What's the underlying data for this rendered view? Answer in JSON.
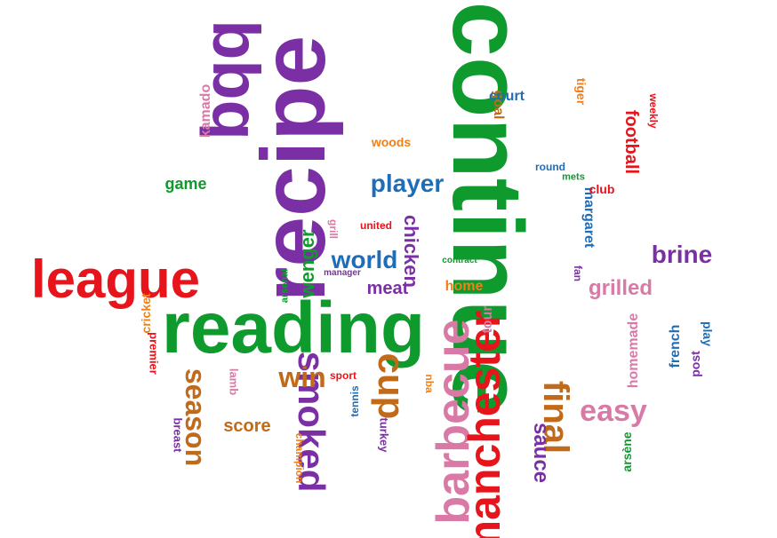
{
  "palette": {
    "purple": "#7b2fa5",
    "green": "#0e9a2c",
    "red": "#e8141b",
    "blue": "#1f6db8",
    "pink": "#d97aa6",
    "orange": "#f07f1a",
    "brown": "#c06a1a"
  },
  "words": [
    {
      "text": "continue",
      "color": "green",
      "orientation": "vertical-cw"
    },
    {
      "text": "recipe",
      "color": "purple",
      "orientation": "vertical-ccw"
    },
    {
      "text": "reading",
      "color": "green",
      "orientation": "horizontal"
    },
    {
      "text": "bbq",
      "color": "purple",
      "orientation": "vertical-cw"
    },
    {
      "text": "league",
      "color": "red",
      "orientation": "horizontal"
    },
    {
      "text": "barbecue",
      "color": "pink",
      "orientation": "vertical-ccw"
    },
    {
      "text": "manchester",
      "color": "red",
      "orientation": "vertical-ccw"
    },
    {
      "text": "smoked",
      "color": "purple",
      "orientation": "vertical-cw"
    },
    {
      "text": "cup",
      "color": "brown",
      "orientation": "vertical-cw"
    },
    {
      "text": "final",
      "color": "brown",
      "orientation": "vertical-cw"
    },
    {
      "text": "easy",
      "color": "pink",
      "orientation": "horizontal"
    },
    {
      "text": "season",
      "color": "brown",
      "orientation": "vertical-cw"
    },
    {
      "text": "win",
      "color": "brown",
      "orientation": "horizontal"
    },
    {
      "text": "world",
      "color": "blue",
      "orientation": "horizontal"
    },
    {
      "text": "player",
      "color": "blue",
      "orientation": "horizontal"
    },
    {
      "text": "brine",
      "color": "purple",
      "orientation": "horizontal"
    },
    {
      "text": "grilled",
      "color": "pink",
      "orientation": "horizontal"
    },
    {
      "text": "sauce",
      "color": "purple",
      "orientation": "vertical-cw"
    },
    {
      "text": "chicken",
      "color": "purple",
      "orientation": "vertical-cw"
    },
    {
      "text": "wenger",
      "color": "green",
      "orientation": "vertical-ccw"
    },
    {
      "text": "meat",
      "color": "purple",
      "orientation": "horizontal"
    },
    {
      "text": "football",
      "color": "red",
      "orientation": "vertical-cw"
    },
    {
      "text": "score",
      "color": "brown",
      "orientation": "horizontal"
    },
    {
      "text": "game",
      "color": "green",
      "orientation": "horizontal"
    },
    {
      "text": "kamado",
      "color": "pink",
      "orientation": "vertical-ccw"
    },
    {
      "text": "goal",
      "color": "brown",
      "orientation": "vertical-cw"
    },
    {
      "text": "court",
      "color": "blue",
      "orientation": "horizontal"
    },
    {
      "text": "woods",
      "color": "orange",
      "orientation": "horizontal"
    },
    {
      "text": "margaret",
      "color": "blue",
      "orientation": "vertical-cw"
    },
    {
      "text": "club",
      "color": "red",
      "orientation": "horizontal"
    },
    {
      "text": "home",
      "color": "orange",
      "orientation": "horizontal"
    },
    {
      "text": "tour",
      "color": "pink",
      "orientation": "vertical-ccw"
    },
    {
      "text": "homemade",
      "color": "pink",
      "orientation": "vertical-ccw"
    },
    {
      "text": "french",
      "color": "blue",
      "orientation": "vertical-ccw"
    },
    {
      "text": "post",
      "color": "purple",
      "orientation": "vertical-ccw"
    },
    {
      "text": "play",
      "color": "blue",
      "orientation": "vertical-cw"
    },
    {
      "text": "tiger",
      "color": "orange",
      "orientation": "vertical-cw"
    },
    {
      "text": "weekly",
      "color": "red",
      "orientation": "vertical-cw"
    },
    {
      "text": "round",
      "color": "blue",
      "orientation": "horizontal"
    },
    {
      "text": "mets",
      "color": "green",
      "orientation": "horizontal"
    },
    {
      "text": "fan",
      "color": "purple",
      "orientation": "vertical-cw"
    },
    {
      "text": "grill",
      "color": "pink",
      "orientation": "vertical-cw"
    },
    {
      "text": "united",
      "color": "red",
      "orientation": "horizontal"
    },
    {
      "text": "contract",
      "color": "green",
      "orientation": "horizontal"
    },
    {
      "text": "arsenal",
      "color": "green",
      "orientation": "vertical-ccw"
    },
    {
      "text": "manager",
      "color": "purple",
      "orientation": "horizontal"
    },
    {
      "text": "cricket",
      "color": "orange",
      "orientation": "vertical-ccw"
    },
    {
      "text": "premier",
      "color": "red",
      "orientation": "vertical-cw"
    },
    {
      "text": "lamb",
      "color": "pink",
      "orientation": "vertical-cw"
    },
    {
      "text": "sport",
      "color": "red",
      "orientation": "horizontal"
    },
    {
      "text": "tennis",
      "color": "blue",
      "orientation": "vertical-ccw"
    },
    {
      "text": "nba",
      "color": "orange",
      "orientation": "vertical-cw"
    },
    {
      "text": "turkey",
      "color": "purple",
      "orientation": "vertical-cw"
    },
    {
      "text": "breast",
      "color": "purple",
      "orientation": "vertical-cw"
    },
    {
      "text": "champion",
      "color": "orange",
      "orientation": "vertical-cw"
    },
    {
      "text": "arsène",
      "color": "green",
      "orientation": "vertical-ccw"
    }
  ]
}
